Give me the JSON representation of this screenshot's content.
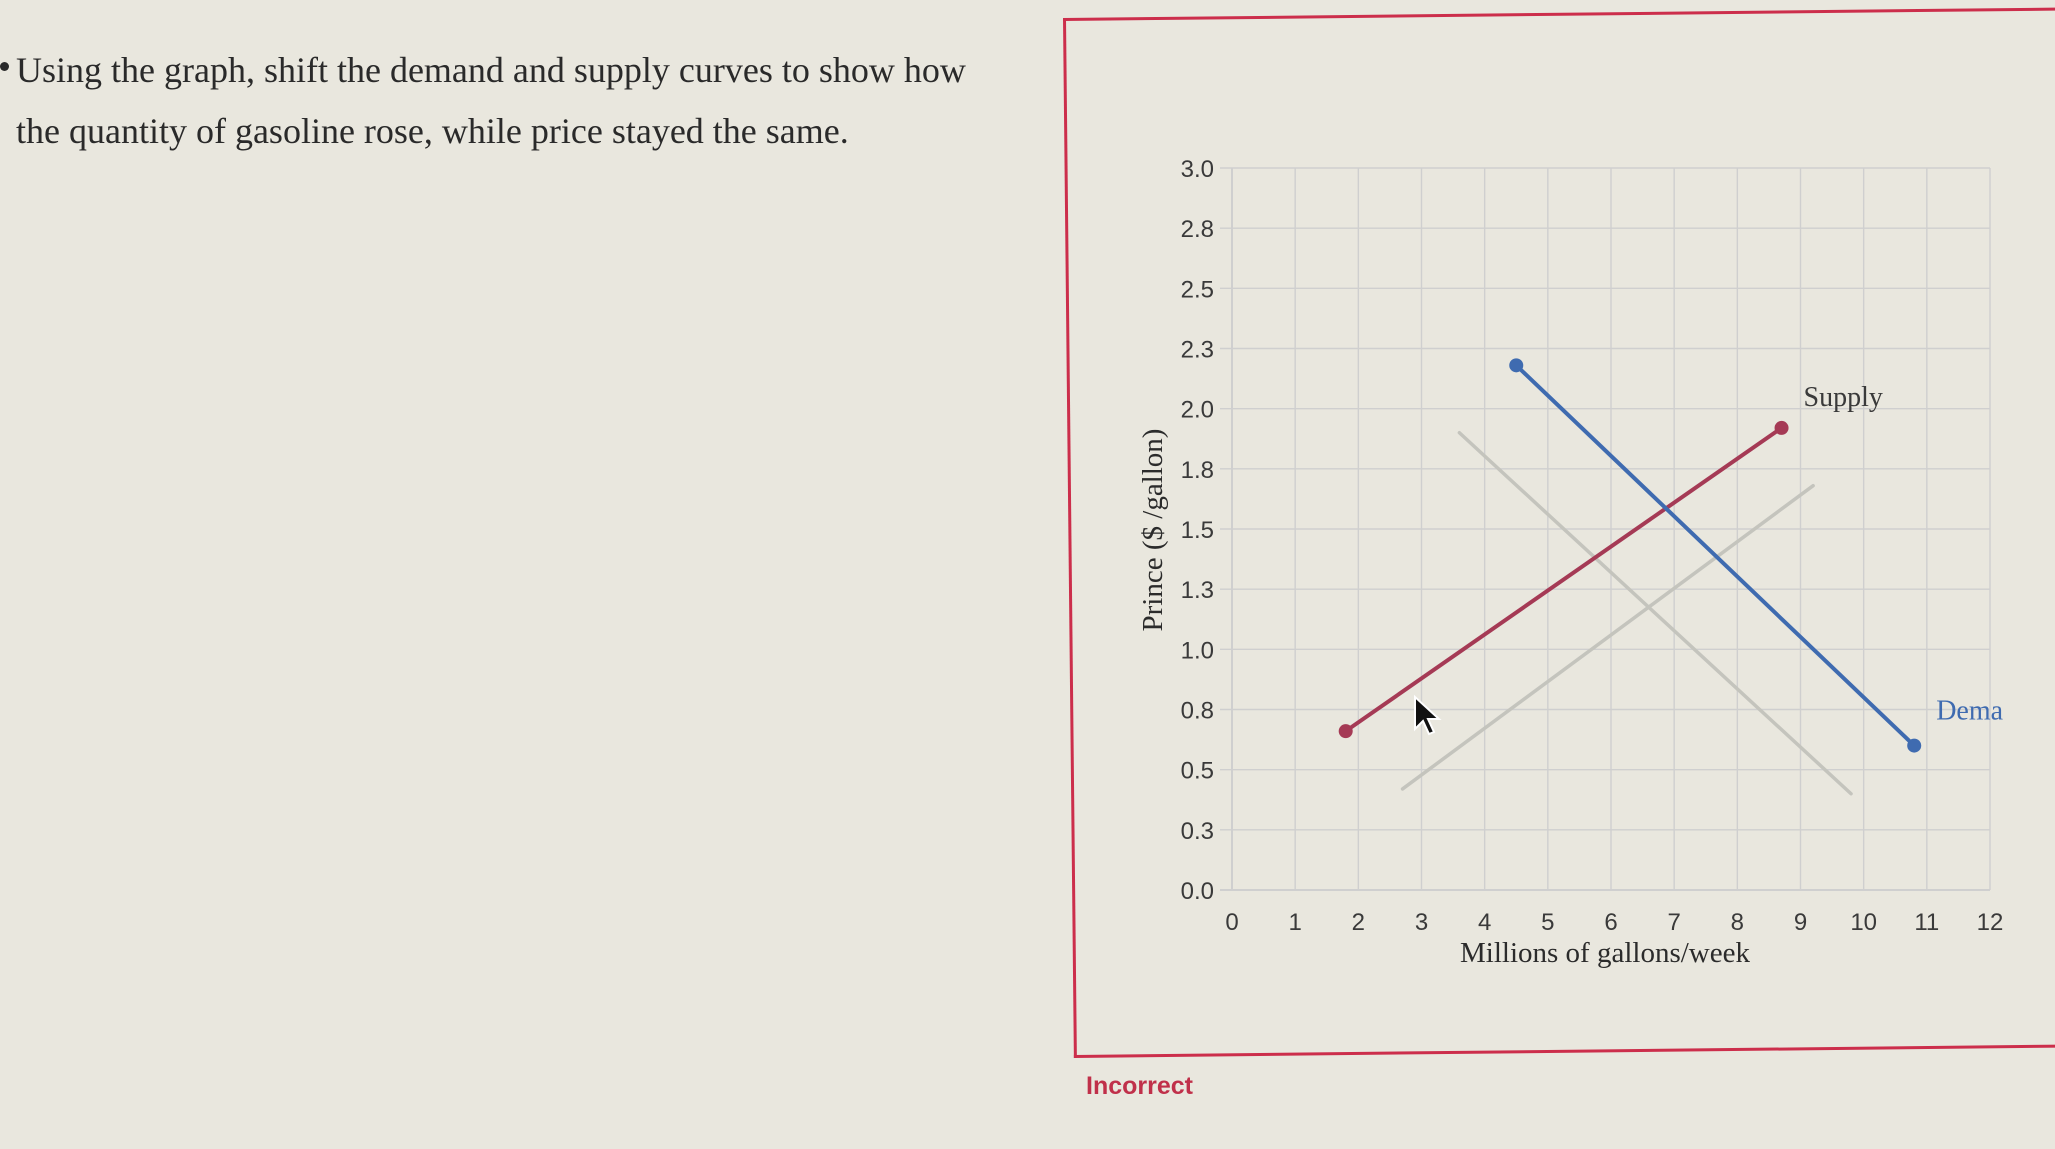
{
  "question": {
    "text": "Using the graph, shift the demand and supply curves to show how the quantity of gasoline rose, while price stayed the same."
  },
  "feedback": {
    "status": "Incorrect"
  },
  "colors": {
    "frame": "#cc2e4b",
    "supply": "#a53a55",
    "demand": "#3f6bb0",
    "original_curves": "#c4c4bd",
    "grid": "#cfcfcf",
    "feedback": "#c0304a"
  },
  "chart_data": {
    "type": "line",
    "xlabel": "Millions of gallons/week",
    "ylabel": "Prince ($ /gallon)",
    "x_ticks": [
      "0",
      "1",
      "2",
      "3",
      "4",
      "5",
      "6",
      "7",
      "8",
      "9",
      "10",
      "11",
      "12"
    ],
    "y_ticks": [
      "3.0",
      "2.8",
      "2.5",
      "2.3",
      "2.0",
      "1.8",
      "1.5",
      "1.3",
      "1.0",
      "0.8",
      "0.5",
      "0.3",
      "0.0"
    ],
    "xlim": [
      0,
      12
    ],
    "ylim": [
      0,
      3
    ],
    "grid": true,
    "series": [
      {
        "name": "Supply",
        "role": "shifted",
        "color": "#a53a55",
        "handles": true,
        "x": [
          1.8,
          8.7
        ],
        "y": [
          0.66,
          1.92
        ]
      },
      {
        "name": "Demand",
        "label_text": "Dema",
        "role": "shifted",
        "color": "#3f6bb0",
        "handles": true,
        "x": [
          4.5,
          10.8
        ],
        "y": [
          2.18,
          0.6
        ]
      },
      {
        "role": "original",
        "color": "#c4c4bd",
        "x": [
          2.7,
          9.2
        ],
        "y": [
          0.42,
          1.68
        ]
      },
      {
        "role": "original",
        "color": "#c4c4bd",
        "x": [
          3.6,
          9.8
        ],
        "y": [
          1.9,
          0.4
        ]
      }
    ]
  }
}
